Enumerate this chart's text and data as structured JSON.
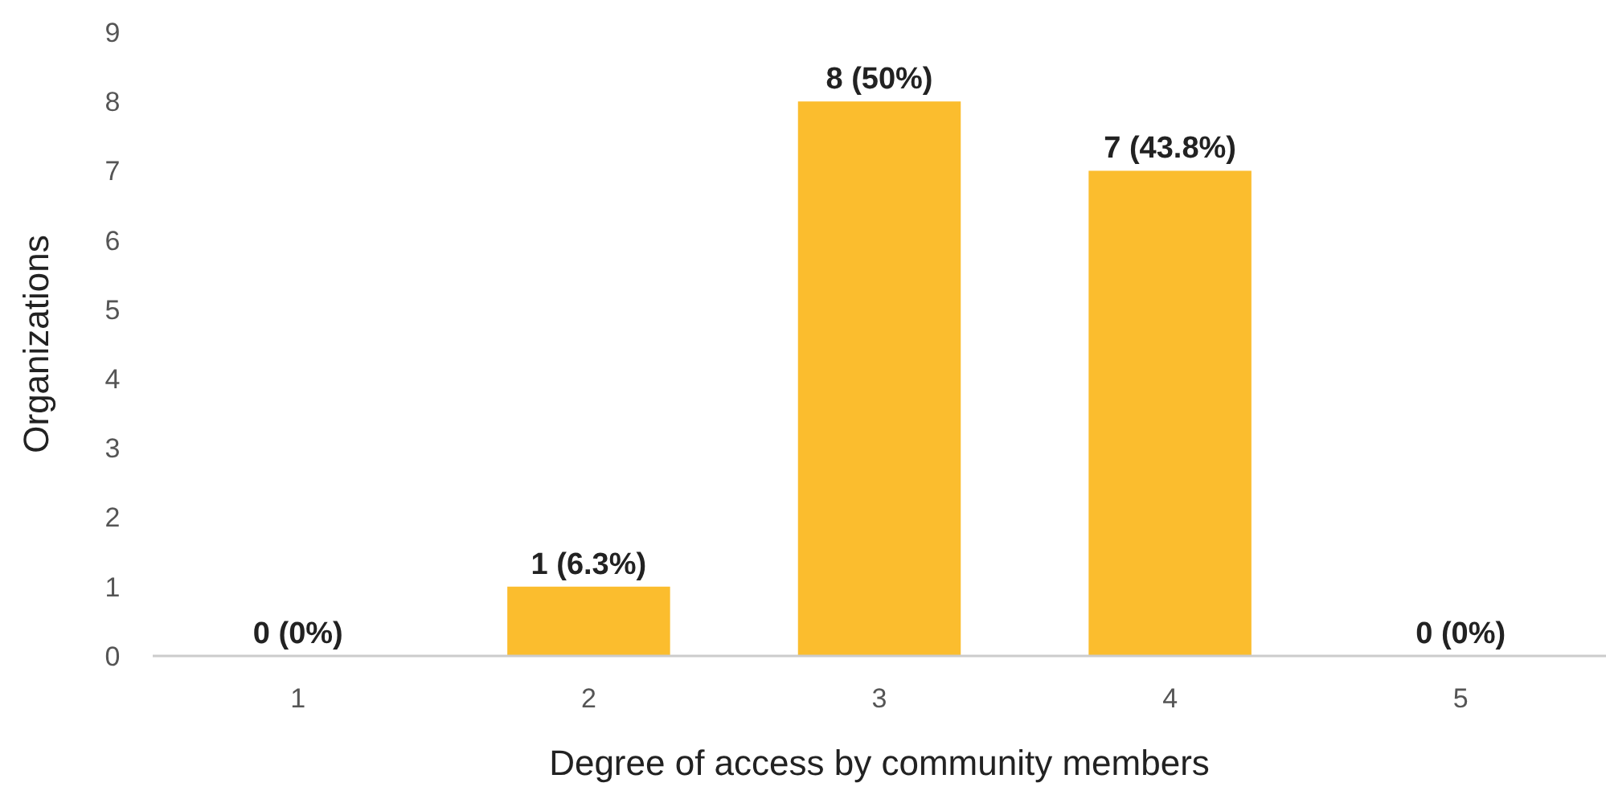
{
  "chart_data": {
    "type": "bar",
    "xlabel": "Degree of access by community members",
    "ylabel": "Organizations",
    "categories": [
      "1",
      "2",
      "3",
      "4",
      "5"
    ],
    "values": [
      0,
      1,
      8,
      7,
      0
    ],
    "value_labels": [
      "0 (0%)",
      "1 (6.3%)",
      "8 (50%)",
      "7 (43.8%)",
      "0 (0%)"
    ],
    "color": "#fbbd2e",
    "ylim": [
      0,
      9
    ],
    "yticks": [
      0,
      1,
      2,
      3,
      4,
      5,
      6,
      7,
      8,
      9
    ],
    "grid": false
  }
}
